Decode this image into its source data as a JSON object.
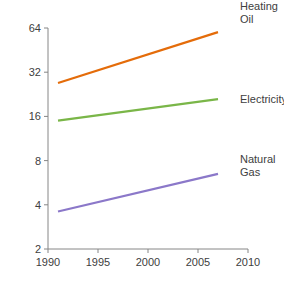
{
  "chart_data": {
    "type": "line",
    "x": [
      1991,
      2007
    ],
    "series": [
      {
        "name": "Heating Oil",
        "color": "#e46c0a",
        "values": [
          27,
          60
        ]
      },
      {
        "name": "Electricity",
        "color": "#7ab648",
        "values": [
          15,
          21
        ]
      },
      {
        "name": "Natural Gas",
        "color": "#8b78c9",
        "values": [
          3.6,
          6.5
        ]
      }
    ],
    "xlim": [
      1990,
      2010
    ],
    "xticks": [
      1990,
      1995,
      2000,
      2005,
      2010
    ],
    "ylim": [
      2,
      64
    ],
    "yticks": [
      2,
      4,
      8,
      16,
      32,
      64
    ],
    "log": "y",
    "grid": false
  }
}
